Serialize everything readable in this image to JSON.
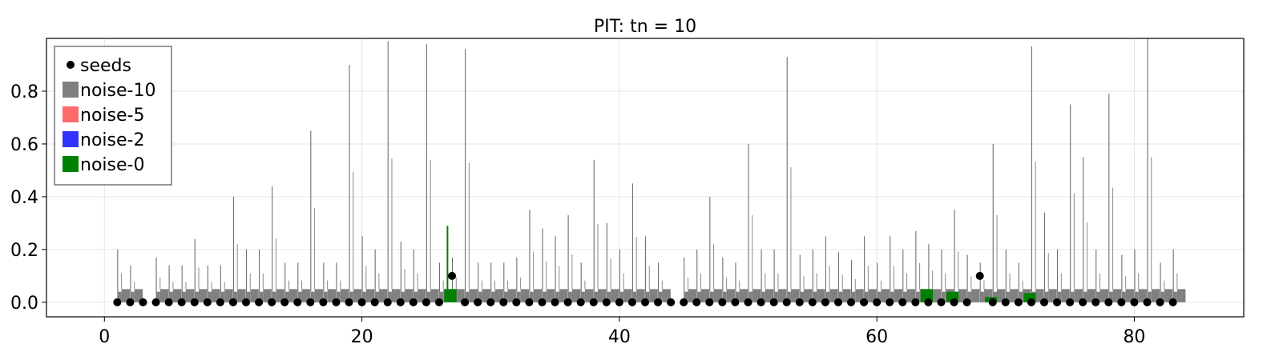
{
  "chart_data": {
    "type": "bar",
    "title": "PIT: tn = 10",
    "xlabel": "",
    "ylabel": "",
    "xlim": [
      -4.5,
      88.5
    ],
    "ylim": [
      -0.055,
      1.0
    ],
    "x_ticks": [
      0,
      20,
      40,
      60,
      80
    ],
    "y_ticks": [
      0.0,
      0.2,
      0.4,
      0.6,
      0.8
    ],
    "x_tick_labels": [
      "0",
      "20",
      "40",
      "60",
      "80"
    ],
    "y_tick_labels": [
      "0.0",
      "0.2",
      "0.4",
      "0.6",
      "0.8"
    ],
    "grid": true,
    "legend_position": "top-left",
    "legend": [
      {
        "label": "seeds",
        "color": "#000000",
        "marker": "dot"
      },
      {
        "label": "noise-10",
        "color": "#808080",
        "marker": "square"
      },
      {
        "label": "noise-5",
        "color": "#ff6a6a",
        "marker": "square"
      },
      {
        "label": "noise-2",
        "color": "#3333ff",
        "marker": "square"
      },
      {
        "label": "noise-0",
        "color": "#008000",
        "marker": "square"
      }
    ],
    "seeds": {
      "name": "seeds",
      "x": [
        1,
        2,
        3,
        4,
        5,
        6,
        7,
        8,
        9,
        10,
        11,
        12,
        13,
        14,
        15,
        16,
        17,
        18,
        19,
        20,
        21,
        22,
        23,
        24,
        25,
        26,
        27,
        28,
        29,
        30,
        31,
        32,
        33,
        34,
        35,
        36,
        37,
        38,
        39,
        40,
        41,
        42,
        43,
        44,
        45,
        46,
        47,
        48,
        49,
        50,
        51,
        52,
        53,
        54,
        55,
        56,
        57,
        58,
        59,
        60,
        61,
        62,
        63,
        64,
        65,
        66,
        67,
        68,
        69,
        70,
        71,
        72,
        73,
        74,
        75,
        76,
        77,
        78,
        79,
        80,
        81,
        82,
        83
      ],
      "y": [
        0,
        0,
        0,
        0,
        0,
        0,
        0,
        0,
        0,
        0,
        0,
        0,
        0,
        0,
        0,
        0,
        0,
        0,
        0,
        0,
        0,
        0,
        0,
        0,
        0,
        0,
        0.1,
        0,
        0,
        0,
        0,
        0,
        0,
        0,
        0,
        0,
        0,
        0,
        0,
        0,
        0,
        0,
        0,
        0,
        0,
        0,
        0,
        0,
        0,
        0,
        0,
        0,
        0,
        0,
        0,
        0,
        0,
        0,
        0,
        0,
        0,
        0,
        0,
        0,
        0,
        0,
        0,
        0.1,
        0,
        0,
        0,
        0,
        0,
        0,
        0,
        0,
        0,
        0,
        0,
        0,
        0,
        0,
        0
      ]
    },
    "noise_histogram": {
      "name": "noise-10",
      "color": "#808080",
      "x_with_bars": [
        1,
        2,
        4,
        5,
        6,
        7,
        8,
        9,
        10,
        11,
        12,
        13,
        14,
        15,
        16,
        17,
        18,
        19,
        20,
        21,
        22,
        23,
        24,
        25,
        26,
        27,
        28,
        29,
        30,
        31,
        32,
        33,
        34,
        35,
        36,
        37,
        38,
        39,
        40,
        41,
        42,
        43,
        45,
        46,
        47,
        48,
        49,
        50,
        51,
        52,
        53,
        54,
        55,
        56,
        57,
        58,
        59,
        60,
        61,
        62,
        63,
        64,
        65,
        66,
        67,
        68,
        69,
        70,
        71,
        72,
        73,
        74,
        75,
        76,
        77,
        78,
        79,
        80,
        81,
        82,
        83
      ],
      "base_bar_height": 0.05,
      "spike_heights": {
        "1": 0.2,
        "2": 0.14,
        "4": 0.17,
        "5": 0.14,
        "6": 0.14,
        "7": 0.24,
        "8": 0.14,
        "9": 0.14,
        "10": 0.4,
        "11": 0.2,
        "12": 0.2,
        "13": 0.44,
        "14": 0.15,
        "15": 0.15,
        "16": 0.65,
        "17": 0.15,
        "18": 0.15,
        "19": 0.9,
        "20": 0.25,
        "21": 0.2,
        "22": 0.99,
        "23": 0.23,
        "24": 0.2,
        "25": 0.98,
        "26": 0.15,
        "27": 0.17,
        "28": 0.96,
        "29": 0.15,
        "30": 0.15,
        "31": 0.15,
        "32": 0.17,
        "33": 0.35,
        "34": 0.28,
        "35": 0.25,
        "36": 0.33,
        "37": 0.15,
        "38": 0.54,
        "39": 0.3,
        "40": 0.2,
        "41": 0.45,
        "42": 0.25,
        "43": 0.15,
        "45": 0.17,
        "46": 0.2,
        "47": 0.4,
        "48": 0.17,
        "49": 0.15,
        "50": 0.6,
        "51": 0.2,
        "52": 0.2,
        "53": 0.93,
        "54": 0.18,
        "55": 0.2,
        "56": 0.25,
        "57": 0.19,
        "58": 0.16,
        "59": 0.25,
        "60": 0.15,
        "61": 0.25,
        "62": 0.2,
        "63": 0.27,
        "64": 0.22,
        "65": 0.2,
        "66": 0.35,
        "67": 0.18,
        "68": 0.15,
        "69": 0.6,
        "70": 0.2,
        "71": 0.15,
        "72": 0.97,
        "73": 0.34,
        "74": 0.2,
        "75": 0.75,
        "76": 0.55,
        "77": 0.2,
        "78": 0.79,
        "79": 0.18,
        "80": 0.2,
        "81": 1.0,
        "82": 0.15,
        "83": 0.2
      }
    },
    "green_bars": {
      "name": "noise-0",
      "color": "#008000",
      "peaks": {
        "27": 0.29,
        "64": 0.05,
        "66": 0.04,
        "69": 0.02,
        "72": 0.035
      }
    }
  }
}
